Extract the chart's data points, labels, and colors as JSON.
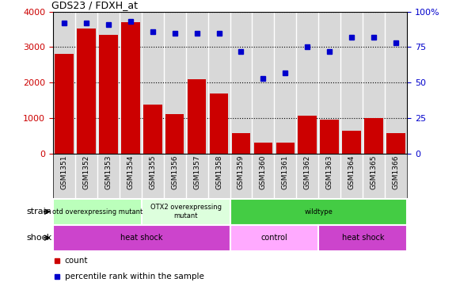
{
  "title": "GDS23 / FDXH_at",
  "samples": [
    "GSM1351",
    "GSM1352",
    "GSM1353",
    "GSM1354",
    "GSM1355",
    "GSM1356",
    "GSM1357",
    "GSM1358",
    "GSM1359",
    "GSM1360",
    "GSM1361",
    "GSM1362",
    "GSM1363",
    "GSM1364",
    "GSM1365",
    "GSM1366"
  ],
  "counts": [
    2820,
    3530,
    3340,
    3700,
    1380,
    1120,
    2090,
    1690,
    590,
    310,
    310,
    1060,
    960,
    650,
    1010,
    570
  ],
  "percentiles": [
    92,
    92,
    91,
    93,
    86,
    85,
    85,
    85,
    72,
    53,
    57,
    75,
    72,
    82,
    82,
    78
  ],
  "bar_color": "#cc0000",
  "dot_color": "#0000cc",
  "ylim_left": [
    0,
    4000
  ],
  "ylim_right": [
    0,
    100
  ],
  "left_yticks": [
    0,
    1000,
    2000,
    3000,
    4000
  ],
  "right_yticks": [
    0,
    25,
    50,
    75,
    100
  ],
  "strain_groups": [
    {
      "label": "otd overexpressing mutant",
      "start": 0,
      "end": 4,
      "color": "#bbffbb"
    },
    {
      "label": "OTX2 overexpressing\nmutant",
      "start": 4,
      "end": 8,
      "color": "#ddffdd"
    },
    {
      "label": "wildtype",
      "start": 8,
      "end": 16,
      "color": "#44cc44"
    }
  ],
  "shock_groups": [
    {
      "label": "heat shock",
      "start": 0,
      "end": 8,
      "color": "#cc44cc"
    },
    {
      "label": "control",
      "start": 8,
      "end": 12,
      "color": "#ffaaff"
    },
    {
      "label": "heat shock",
      "start": 12,
      "end": 16,
      "color": "#cc44cc"
    }
  ],
  "strain_label": "strain",
  "shock_label": "shock",
  "legend_items": [
    {
      "color": "#cc0000",
      "label": "count"
    },
    {
      "color": "#0000cc",
      "label": "percentile rank within the sample"
    }
  ],
  "col_bg": "#d8d8d8",
  "chart_bg": "#ffffff"
}
